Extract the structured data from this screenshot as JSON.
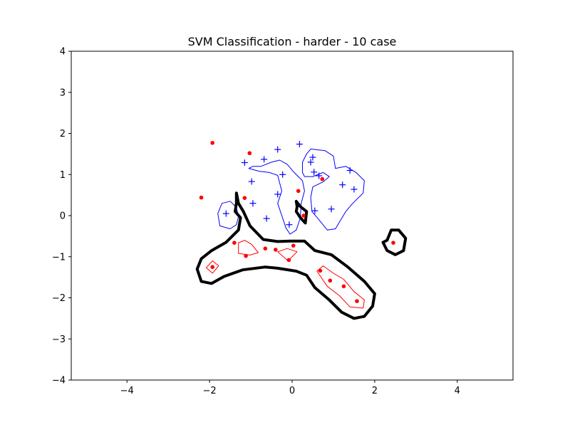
{
  "chart_data": {
    "type": "scatter",
    "title": "SVM Classification - harder - 10 case",
    "xlabel": "",
    "ylabel": "",
    "xlim": [
      -5.35,
      5.35
    ],
    "ylim": [
      -4,
      4
    ],
    "x_ticks": [
      -4,
      -2,
      0,
      2,
      4
    ],
    "x_tick_labels": [
      "−4",
      "−2",
      "0",
      "2",
      "4"
    ],
    "y_ticks": [
      -4,
      -3,
      -2,
      -1,
      0,
      1,
      2,
      3,
      4
    ],
    "y_tick_labels": [
      "−4",
      "−3",
      "−2",
      "−1",
      "0",
      "1",
      "2",
      "3",
      "4"
    ],
    "grid": false,
    "colors": {
      "positive": "#0000ff",
      "negative": "#ff0000",
      "boundary": "#000000"
    },
    "series": [
      {
        "marker": "plus",
        "color": "#0000ff",
        "points": [
          [
            0.18,
            1.74
          ],
          [
            -0.35,
            1.61
          ],
          [
            -1.15,
            1.29
          ],
          [
            -0.68,
            1.37
          ],
          [
            0.5,
            1.42
          ],
          [
            0.45,
            1.3
          ],
          [
            -0.23,
            1.0
          ],
          [
            0.53,
            1.06
          ],
          [
            0.65,
            0.97
          ],
          [
            1.4,
            1.1
          ],
          [
            -0.98,
            0.83
          ],
          [
            1.22,
            0.75
          ],
          [
            1.5,
            0.64
          ],
          [
            -0.35,
            0.52
          ],
          [
            -0.95,
            0.3
          ],
          [
            -1.6,
            0.05
          ],
          [
            0.55,
            0.12
          ],
          [
            0.95,
            0.16
          ],
          [
            -0.62,
            -0.07
          ],
          [
            -0.07,
            -0.22
          ]
        ]
      },
      {
        "marker": "dot",
        "color": "#ff0000",
        "points": [
          [
            -1.93,
            1.77
          ],
          [
            -1.03,
            1.52
          ],
          [
            -2.2,
            0.44
          ],
          [
            -1.15,
            0.43
          ],
          [
            0.15,
            0.6
          ],
          [
            0.73,
            0.89
          ],
          [
            0.28,
            0.0
          ],
          [
            -1.4,
            -0.66
          ],
          [
            -1.12,
            -0.98
          ],
          [
            -0.65,
            -0.8
          ],
          [
            -0.4,
            -0.83
          ],
          [
            0.03,
            -0.73
          ],
          [
            -0.08,
            -1.08
          ],
          [
            -1.93,
            -1.25
          ],
          [
            0.68,
            -1.34
          ],
          [
            0.92,
            -1.58
          ],
          [
            1.25,
            -1.72
          ],
          [
            1.57,
            -2.08
          ],
          [
            2.45,
            -0.66
          ]
        ]
      }
    ],
    "contours": [
      {
        "color": "#0000ff",
        "width": 1,
        "points": [
          [
            -1.05,
            1.15
          ],
          [
            -0.8,
            1.08
          ],
          [
            -0.55,
            1.05
          ],
          [
            -0.35,
            0.98
          ],
          [
            -0.25,
            0.6
          ],
          [
            -0.35,
            0.3
          ],
          [
            -0.25,
            0.0
          ],
          [
            -0.15,
            -0.3
          ],
          [
            -0.05,
            -0.45
          ],
          [
            0.1,
            -0.35
          ],
          [
            0.2,
            -0.05
          ],
          [
            0.22,
            0.3
          ],
          [
            0.3,
            0.6
          ],
          [
            0.25,
            0.85
          ],
          [
            0.05,
            1.05
          ],
          [
            -0.12,
            1.25
          ],
          [
            -0.3,
            1.35
          ],
          [
            -0.5,
            1.3
          ],
          [
            -0.75,
            1.2
          ],
          [
            -0.95,
            1.2
          ]
        ]
      },
      {
        "color": "#0000ff",
        "width": 1,
        "points": [
          [
            0.45,
            1.62
          ],
          [
            0.8,
            1.58
          ],
          [
            1.0,
            1.45
          ],
          [
            1.05,
            1.15
          ],
          [
            1.3,
            1.2
          ],
          [
            1.55,
            1.05
          ],
          [
            1.75,
            0.85
          ],
          [
            1.72,
            0.55
          ],
          [
            1.45,
            0.28
          ],
          [
            1.3,
            0.1
          ],
          [
            1.15,
            -0.15
          ],
          [
            1.05,
            -0.32
          ],
          [
            0.85,
            -0.35
          ],
          [
            0.65,
            -0.1
          ],
          [
            0.48,
            0.1
          ],
          [
            0.45,
            0.45
          ],
          [
            0.5,
            0.7
          ],
          [
            0.75,
            0.82
          ],
          [
            0.9,
            0.95
          ],
          [
            0.75,
            1.05
          ],
          [
            0.5,
            0.95
          ],
          [
            0.3,
            0.95
          ],
          [
            0.25,
            1.05
          ],
          [
            0.25,
            1.3
          ],
          [
            0.35,
            1.5
          ]
        ]
      },
      {
        "color": "#0000ff",
        "width": 1,
        "points": [
          [
            -1.75,
            -0.25
          ],
          [
            -1.5,
            -0.32
          ],
          [
            -1.35,
            -0.22
          ],
          [
            -1.3,
            -0.02
          ],
          [
            -1.35,
            0.2
          ],
          [
            -1.5,
            0.35
          ],
          [
            -1.7,
            0.3
          ],
          [
            -1.8,
            0.05
          ]
        ]
      },
      {
        "color": "#ff0000",
        "width": 1,
        "points": [
          [
            -1.3,
            -0.92
          ],
          [
            -1.02,
            -0.96
          ],
          [
            -0.82,
            -0.9
          ],
          [
            -0.98,
            -0.7
          ],
          [
            -1.15,
            -0.6
          ],
          [
            -1.3,
            -0.66
          ]
        ]
      },
      {
        "color": "#ff0000",
        "width": 1,
        "points": [
          [
            -0.35,
            -0.88
          ],
          [
            -0.1,
            -1.1
          ],
          [
            0.12,
            -0.88
          ],
          [
            -0.12,
            -0.8
          ]
        ]
      },
      {
        "color": "#ff0000",
        "width": 1,
        "points": [
          [
            -2.08,
            -1.27
          ],
          [
            -1.93,
            -1.4
          ],
          [
            -1.78,
            -1.22
          ],
          [
            -1.93,
            -1.1
          ]
        ]
      },
      {
        "color": "#ff0000",
        "width": 1,
        "points": [
          [
            0.6,
            -1.35
          ],
          [
            0.85,
            -1.72
          ],
          [
            1.15,
            -1.95
          ],
          [
            1.4,
            -2.22
          ],
          [
            1.72,
            -2.25
          ],
          [
            1.75,
            -2.05
          ],
          [
            1.5,
            -1.85
          ],
          [
            1.25,
            -1.55
          ],
          [
            1.0,
            -1.4
          ],
          [
            0.75,
            -1.22
          ]
        ]
      },
      {
        "color": "#000000",
        "width": 4,
        "points": [
          [
            -1.35,
            0.55
          ],
          [
            -1.3,
            0.3
          ],
          [
            -1.18,
            0.1
          ],
          [
            -1.02,
            -0.25
          ],
          [
            -0.7,
            -0.58
          ],
          [
            -0.35,
            -0.63
          ],
          [
            -0.05,
            -0.62
          ],
          [
            0.3,
            -0.62
          ],
          [
            0.55,
            -0.85
          ],
          [
            0.95,
            -0.95
          ],
          [
            1.35,
            -1.25
          ],
          [
            1.75,
            -1.6
          ],
          [
            2.0,
            -1.9
          ],
          [
            1.95,
            -2.2
          ],
          [
            1.75,
            -2.45
          ],
          [
            1.5,
            -2.5
          ],
          [
            1.2,
            -2.35
          ],
          [
            0.9,
            -2.05
          ],
          [
            0.55,
            -1.75
          ],
          [
            0.35,
            -1.45
          ],
          [
            0.1,
            -1.35
          ],
          [
            -0.35,
            -1.28
          ],
          [
            -0.65,
            -1.25
          ],
          [
            -1.2,
            -1.32
          ],
          [
            -1.65,
            -1.48
          ],
          [
            -1.95,
            -1.65
          ],
          [
            -2.2,
            -1.6
          ],
          [
            -2.3,
            -1.3
          ],
          [
            -2.2,
            -1.05
          ],
          [
            -1.95,
            -0.85
          ],
          [
            -1.6,
            -0.65
          ],
          [
            -1.3,
            -0.35
          ],
          [
            -1.25,
            -0.05
          ],
          [
            -1.38,
            0.1
          ],
          [
            -1.35,
            0.3
          ]
        ]
      },
      {
        "color": "#000000",
        "width": 4,
        "points": [
          [
            0.12,
            0.22
          ],
          [
            0.1,
            0.35
          ],
          [
            0.2,
            0.22
          ],
          [
            0.35,
            0.1
          ],
          [
            0.32,
            -0.18
          ],
          [
            0.2,
            -0.05
          ],
          [
            0.1,
            0.1
          ]
        ]
      },
      {
        "color": "#000000",
        "width": 4,
        "points": [
          [
            2.3,
            -0.6
          ],
          [
            2.4,
            -0.35
          ],
          [
            2.58,
            -0.35
          ],
          [
            2.75,
            -0.55
          ],
          [
            2.7,
            -0.85
          ],
          [
            2.5,
            -0.95
          ],
          [
            2.3,
            -0.85
          ],
          [
            2.2,
            -0.65
          ]
        ]
      }
    ]
  }
}
